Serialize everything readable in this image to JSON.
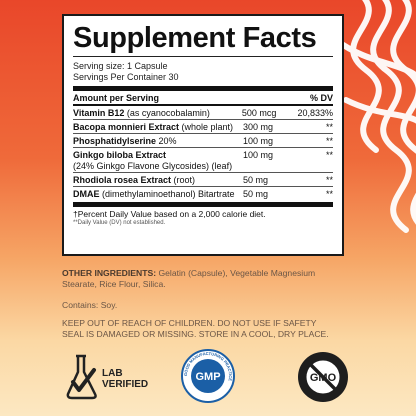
{
  "panel": {
    "title": "Supplement Facts",
    "serving_size": "Serving size: 1 Capsule",
    "servings_per_container": "Servings Per Container 30",
    "col_amount": "Amount per Serving",
    "col_dv": "% DV",
    "rows": [
      {
        "name_bold": "Vitamin B12",
        "name_rest": " (as  cyanocobalamin)",
        "sub": "",
        "amount": "500 mcg",
        "dv": "20,833%"
      },
      {
        "name_bold": "Bacopa monnieri Extract",
        "name_rest": " (whole plant)",
        "sub": "",
        "amount": "300 mg",
        "dv": "**"
      },
      {
        "name_bold": "Phosphatidylserine",
        "name_rest": " 20%",
        "sub": "",
        "amount": "100 mg",
        "dv": "**"
      },
      {
        "name_bold": "Ginkgo biloba Extract",
        "name_rest": "",
        "sub": "(24% Ginkgo Flavone Glycosides) (leaf)",
        "amount": "100 mg",
        "dv": "**"
      },
      {
        "name_bold": "Rhodiola rosea Extract",
        "name_rest": " (root)",
        "sub": "",
        "amount": "50 mg",
        "dv": "**"
      },
      {
        "name_bold": "DMAE",
        "name_rest": " (dimethylaminoethanol) Bitartrate",
        "sub": "",
        "amount": "50 mg",
        "dv": "**"
      }
    ],
    "footnote_1": "†Percent Daily Value based on a 2,000 calorie diet.",
    "footnote_2": "**Daily Value (DV) not established."
  },
  "other_ingredients": {
    "label": "OTHER INGREDIENTS:",
    "line1": " Gelatin (Capsule), Vegetable Magnesium",
    "line2": "Stearate, Rice Flour, Silica."
  },
  "contains": "Contains: Soy.",
  "warning": {
    "line1": "KEEP OUT OF REACH OF CHILDREN. DO NOT USE IF SAFETY",
    "line2": "SEAL IS DAMAGED OR MISSING. STORE IN A COOL, DRY PLACE."
  },
  "badges": {
    "lab_line1": "LAB",
    "lab_line2": "VERIFIED",
    "gmp_center": "GMP",
    "gmp_ring_text": "GOOD MANUFACTURING PRACTICE",
    "gmo_text": "GMO"
  },
  "colors": {
    "bg_top": "#e9472a",
    "bg_bottom": "#fce8c2",
    "gmp_blue": "#1b5fa6",
    "text_muted": "#6b5646"
  }
}
